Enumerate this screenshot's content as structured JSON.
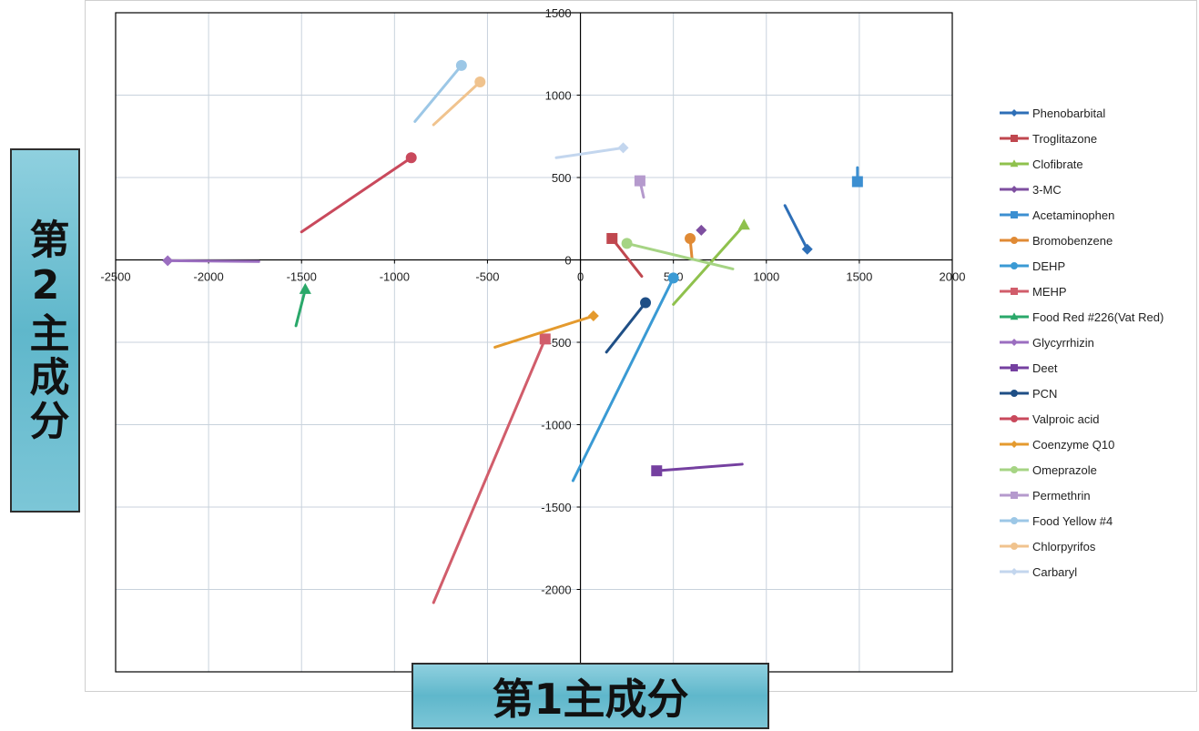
{
  "chart_data": {
    "type": "scatter",
    "title": "",
    "xlabel": "第1主成分",
    "ylabel": "第2主成分",
    "xlim": [
      -2500,
      2000
    ],
    "ylim": [
      -2500,
      1500
    ],
    "x_ticks": [
      "-2500",
      "-2000",
      "-1500",
      "-1000",
      "-500",
      "0",
      "500",
      "1000",
      "1500",
      "2000"
    ],
    "y_ticks": [
      "1500",
      "1000",
      "500",
      "0",
      "-500",
      "-1000",
      "-1500",
      "-2000"
    ],
    "grid": true,
    "legend_position": "right",
    "series": [
      {
        "name": "Phenobarbital",
        "color": "#2e6fb7",
        "marker": "diamond",
        "points": [
          [
            1100,
            330
          ],
          [
            1220,
            65
          ]
        ]
      },
      {
        "name": "Troglitazone",
        "color": "#c0474f",
        "marker": "square",
        "points": [
          [
            330,
            -100
          ],
          [
            170,
            130
          ]
        ]
      },
      {
        "name": "Clofibrate",
        "color": "#8fc14d",
        "marker": "triangle",
        "points": [
          [
            500,
            -270
          ],
          [
            880,
            210
          ]
        ]
      },
      {
        "name": "3-MC",
        "color": "#7e4fa0",
        "marker": "diamond",
        "points": [
          [
            650,
            180
          ]
        ]
      },
      {
        "name": "Acetaminophen",
        "color": "#3c8fd1",
        "marker": "square",
        "points": [
          [
            1490,
            560
          ],
          [
            1490,
            475
          ]
        ]
      },
      {
        "name": "Bromobenzene",
        "color": "#e08a35",
        "marker": "circle",
        "points": [
          [
            600,
            10
          ],
          [
            590,
            130
          ]
        ]
      },
      {
        "name": "DEHP",
        "color": "#3a9ad4",
        "marker": "circle",
        "points": [
          [
            -40,
            -1340
          ],
          [
            500,
            -110
          ]
        ]
      },
      {
        "name": "MEHP",
        "color": "#d15d6b",
        "marker": "square",
        "points": [
          [
            -790,
            -2080
          ],
          [
            -190,
            -480
          ]
        ]
      },
      {
        "name": "Food Red #226(Vat Red)",
        "color": "#2aa86a",
        "marker": "triangle",
        "points": [
          [
            -1530,
            -400
          ],
          [
            -1480,
            -180
          ]
        ]
      },
      {
        "name": "Glycyrrhizin",
        "color": "#9b6ec0",
        "marker": "diamond",
        "points": [
          [
            -1730,
            -10
          ],
          [
            -2220,
            -5
          ]
        ]
      },
      {
        "name": "Deet",
        "color": "#7540a0",
        "marker": "square",
        "points": [
          [
            870,
            -1240
          ],
          [
            410,
            -1280
          ]
        ]
      },
      {
        "name": "PCN",
        "color": "#1f4f86",
        "marker": "circle",
        "points": [
          [
            140,
            -560
          ],
          [
            350,
            -260
          ]
        ]
      },
      {
        "name": "Valproic acid",
        "color": "#c9495c",
        "marker": "circle",
        "points": [
          [
            -1500,
            170
          ],
          [
            -910,
            620
          ]
        ]
      },
      {
        "name": "Coenzyme Q10",
        "color": "#e49a2e",
        "marker": "diamond",
        "points": [
          [
            -460,
            -530
          ],
          [
            70,
            -340
          ]
        ]
      },
      {
        "name": "Omeprazole",
        "color": "#a6d484",
        "marker": "circle",
        "points": [
          [
            820,
            -55
          ],
          [
            250,
            100
          ]
        ]
      },
      {
        "name": "Permethrin",
        "color": "#b59acd",
        "marker": "square",
        "points": [
          [
            340,
            380
          ],
          [
            320,
            480
          ]
        ]
      },
      {
        "name": "Food Yellow #4",
        "color": "#9cc7e6",
        "marker": "circle",
        "points": [
          [
            -890,
            840
          ],
          [
            -640,
            1180
          ]
        ]
      },
      {
        "name": "Chlorpyrifos",
        "color": "#f0c38e",
        "marker": "circle",
        "points": [
          [
            -790,
            820
          ],
          [
            -540,
            1080
          ]
        ]
      },
      {
        "name": "Carbaryl",
        "color": "#c3d6ee",
        "marker": "diamond",
        "points": [
          [
            -130,
            620
          ],
          [
            230,
            680
          ]
        ]
      }
    ]
  }
}
